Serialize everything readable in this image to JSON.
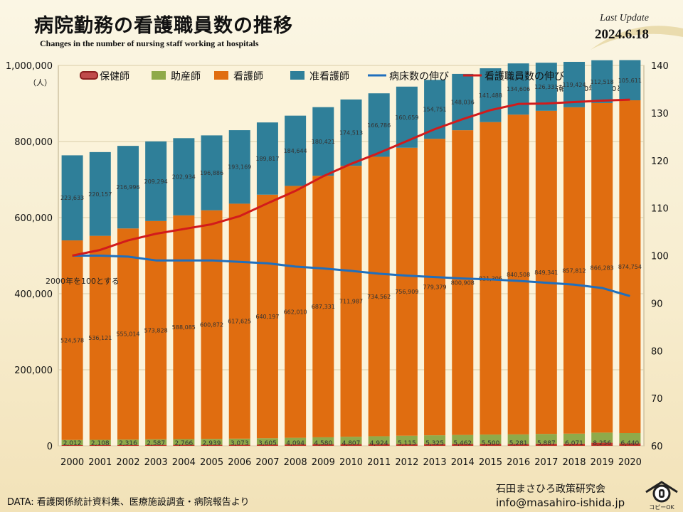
{
  "title": "病院勤務の看護職員数の推移",
  "subtitle": "Changes in the number of nursing staff working at hospitals",
  "update_label": "Last Update",
  "update_date": "2024.6.18",
  "source": "DATA: 看護関係統計資料集、医療施設調査・病院報告より",
  "org": "石田まさひろ政策研究会",
  "email": "info@masahiro-ishida.jp",
  "logo_text": "コピーOK",
  "colors": {
    "hokenshi": "#c0392b",
    "josanshi": "#8faa4a",
    "kangoshi": "#e06d10",
    "junkangoshi": "#2f7f99",
    "bed_line": "#1f6fbd",
    "staff_line": "#d21b1b"
  },
  "chart_data": {
    "type": "bar",
    "stacked": true,
    "categories": [
      "2000",
      "2001",
      "2002",
      "2003",
      "2004",
      "2005",
      "2006",
      "2007",
      "2008",
      "2009",
      "2010",
      "2011",
      "2012",
      "2013",
      "2014",
      "2015",
      "2016",
      "2017",
      "2018",
      "2019",
      "2020"
    ],
    "left_axis": {
      "unit": "（人）",
      "min": 0,
      "max": 1000000,
      "ticks": [
        "0",
        "200,000",
        "400,000",
        "600,000",
        "800,000",
        "1,000,000"
      ]
    },
    "right_axis": {
      "min": 60,
      "max": 140,
      "ticks": [
        "60",
        "70",
        "80",
        "90",
        "100",
        "110",
        "120",
        "130",
        "140"
      ],
      "note": "右軸: 2000年を100とする"
    },
    "series": [
      {
        "name": "保健師",
        "values": [
          2012,
          2108,
          2316,
          2587,
          2766,
          2939,
          3073,
          3605,
          4094,
          4580,
          4807,
          4924,
          5115,
          5325,
          5462,
          5500,
          5281,
          5887,
          6071,
          8256,
          6440
        ],
        "labels": [
          "2,012",
          "2,108",
          "2,316",
          "2,587",
          "2,766",
          "2,939",
          "3,073",
          "3,605",
          "4,094",
          "4,580",
          "4,807",
          "4,924",
          "5,115",
          "5,325",
          "5,462",
          "5,500",
          "5,281",
          "5,887",
          "6,071",
          "8,256",
          "6,440"
        ]
      },
      {
        "name": "助産師",
        "values": [
          13500,
          13800,
          14200,
          14600,
          15000,
          15400,
          15900,
          16500,
          17200,
          18000,
          19200,
          20400,
          21600,
          22500,
          23300,
          24200,
          24900,
          25500,
          26100,
          26600,
          27200
        ]
      },
      {
        "name": "看護師",
        "values": [
          524578,
          536121,
          555014,
          573828,
          588085,
          600872,
          617625,
          640197,
          662010,
          687331,
          711987,
          734562,
          756909,
          779379,
          800908,
          821306,
          840508,
          849341,
          857812,
          866283,
          874754
        ],
        "labels": [
          "524,578",
          "536,121",
          "555,014",
          "573,828",
          "588,085",
          "600,872",
          "617,625",
          "640,197",
          "662,010",
          "687,331",
          "711,987",
          "734,562",
          "756,909",
          "779,379",
          "800,908",
          "821,306",
          "840,508",
          "849,341",
          "857,812",
          "866,283",
          "874,754"
        ]
      },
      {
        "name": "准看護師",
        "values": [
          223633,
          220157,
          216996,
          209294,
          202934,
          196886,
          193169,
          189817,
          184644,
          180421,
          174513,
          166786,
          160659,
          154751,
          148036,
          141488,
          134606,
          126331,
          119424,
          112518,
          105611
        ],
        "labels": [
          "223,633",
          "220,157",
          "216,996",
          "209,294",
          "202,934",
          "196,886",
          "193,169",
          "189,817",
          "184,644",
          "180,421",
          "174,513",
          "166,786",
          "160,659",
          "154,751",
          "148,036",
          "141,488",
          "134,606",
          "126,331",
          "119,424",
          "112,518",
          "105,611"
        ]
      }
    ],
    "lines": [
      {
        "name": "病床数の伸び",
        "axis": "right",
        "values": [
          100,
          100,
          99.8,
          99,
          99,
          99,
          98.7,
          98.4,
          97.7,
          97.3,
          96.8,
          96.2,
          95.8,
          95.5,
          95.2,
          95,
          94.7,
          94.3,
          93.9,
          93.2,
          91.5
        ]
      },
      {
        "name": "看護職員数の伸び",
        "axis": "right",
        "values": [
          100,
          101.2,
          103.2,
          104.6,
          105.6,
          106.6,
          108.3,
          111,
          113.6,
          116.7,
          119.3,
          121.6,
          124.1,
          126.6,
          128.7,
          130.6,
          131.9,
          132,
          132.3,
          132.6,
          132.8
        ]
      }
    ],
    "annotation": "2000年を100とする",
    "legend": "top"
  }
}
